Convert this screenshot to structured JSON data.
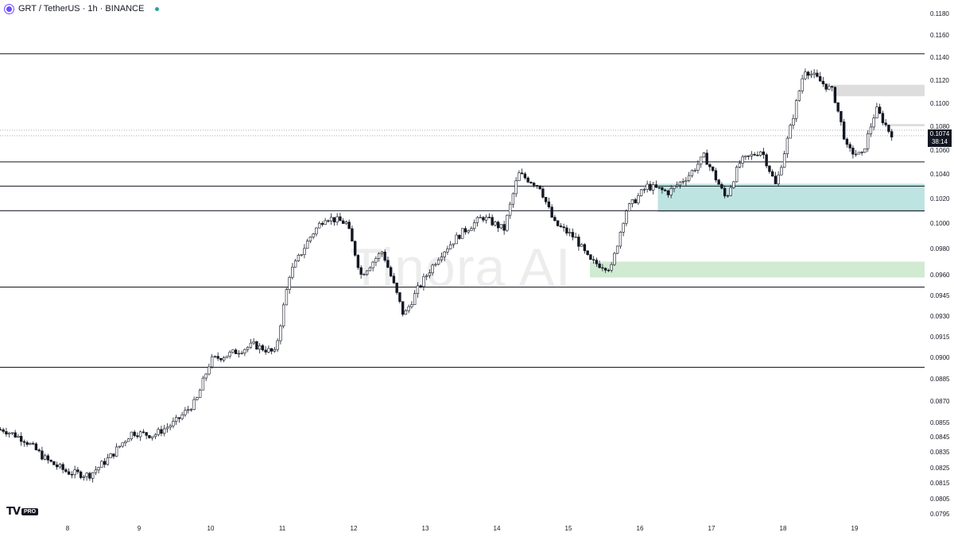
{
  "header": {
    "symbol": "GRT / TetherUS · 1h · BINANCE",
    "icon": "grt-coin-icon",
    "status": "market-open-dot"
  },
  "watermark": "Tinora AI",
  "logo": {
    "mark": "TV",
    "badge": "PRO"
  },
  "colors": {
    "up": "#ffffff",
    "down": "#131722",
    "wick": "#131722",
    "line": "#131722",
    "supply": "#9e9e9e",
    "demand": "#26a69a",
    "demand_light": "#66bb6a"
  },
  "chart_data": {
    "type": "candlestick",
    "symbol": "GRT / TetherUS",
    "interval": "1h",
    "exchange": "BINANCE",
    "x_ticks": [
      "8",
      "9",
      "10",
      "11",
      "12",
      "13",
      "14",
      "15",
      "16",
      "17",
      "18",
      "19"
    ],
    "y_ticks": [
      "0.1180",
      "0.1160",
      "0.1140",
      "0.1120",
      "0.1100",
      "0.1080",
      "0.1060",
      "0.1040",
      "0.1020",
      "0.1000",
      "0.0980",
      "0.0960",
      "0.0945",
      "0.0930",
      "0.0915",
      "0.0900",
      "0.0885",
      "0.0870",
      "0.0855",
      "0.0845",
      "0.0835",
      "0.0825",
      "0.0815",
      "0.0805",
      "0.0795"
    ],
    "y_scale": "log",
    "last_price": "0.1074",
    "countdown": "38:14",
    "horizontal_levels": [
      0.1143,
      0.105,
      0.103,
      0.101,
      0.0951,
      0.0893
    ],
    "zones": [
      {
        "kind": "supply",
        "from": 0.1106,
        "to": 0.1116,
        "start_day": 18.7
      },
      {
        "kind": "supply",
        "from": 0.108,
        "to": 0.1082,
        "start_day": 19.5
      },
      {
        "kind": "demand",
        "from": 0.1009,
        "to": 0.1032,
        "start_day": 16.25
      },
      {
        "kind": "demand_light",
        "from": 0.0958,
        "to": 0.097,
        "start_day": 15.3
      }
    ],
    "price_path": [
      [
        7.1,
        0.085
      ],
      [
        7.4,
        0.0843
      ],
      [
        7.7,
        0.083
      ],
      [
        8.0,
        0.0822
      ],
      [
        8.3,
        0.082
      ],
      [
        8.6,
        0.0832
      ],
      [
        8.9,
        0.0848
      ],
      [
        9.2,
        0.0846
      ],
      [
        9.5,
        0.0855
      ],
      [
        9.8,
        0.087
      ],
      [
        10.0,
        0.0898
      ],
      [
        10.3,
        0.0903
      ],
      [
        10.6,
        0.0909
      ],
      [
        10.9,
        0.0903
      ],
      [
        11.1,
        0.096
      ],
      [
        11.4,
        0.099
      ],
      [
        11.6,
        0.1005
      ],
      [
        11.9,
        0.1
      ],
      [
        12.1,
        0.096
      ],
      [
        12.4,
        0.0978
      ],
      [
        12.7,
        0.093
      ],
      [
        12.9,
        0.095
      ],
      [
        13.2,
        0.0975
      ],
      [
        13.5,
        0.0992
      ],
      [
        13.8,
        0.1005
      ],
      [
        14.1,
        0.0995
      ],
      [
        14.3,
        0.104
      ],
      [
        14.6,
        0.103
      ],
      [
        14.8,
        0.1
      ],
      [
        15.1,
        0.0988
      ],
      [
        15.3,
        0.097
      ],
      [
        15.6,
        0.0965
      ],
      [
        15.8,
        0.101
      ],
      [
        16.1,
        0.103
      ],
      [
        16.4,
        0.1025
      ],
      [
        16.7,
        0.104
      ],
      [
        16.9,
        0.1055
      ],
      [
        17.2,
        0.102
      ],
      [
        17.4,
        0.105
      ],
      [
        17.7,
        0.106
      ],
      [
        17.9,
        0.103
      ],
      [
        18.1,
        0.1078
      ],
      [
        18.3,
        0.113
      ],
      [
        18.5,
        0.112
      ],
      [
        18.7,
        0.111
      ],
      [
        18.9,
        0.106
      ],
      [
        19.1,
        0.1055
      ],
      [
        19.3,
        0.1095
      ],
      [
        19.5,
        0.1074
      ]
    ]
  }
}
